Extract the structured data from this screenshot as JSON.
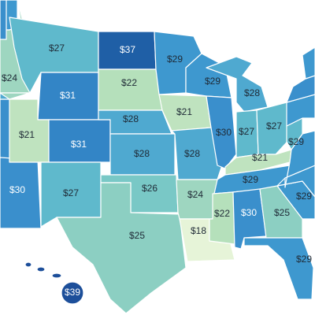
{
  "map": {
    "colors": {
      "c18": "#e6f4d8",
      "c21": "#bfe3bf",
      "c22": "#b5e0bb",
      "c24": "#9ed6c0",
      "c25": "#8ccfc2",
      "c26": "#79c8c6",
      "c27": "#5fb9cc",
      "c28": "#4fa9d0",
      "c29": "#3e98cf",
      "c30": "#3a8fcc",
      "c31": "#3385c6",
      "c37": "#1f5fa6",
      "c39": "#1d4f9a",
      "ocean": "#ffffff"
    },
    "states": [
      {
        "id": "WA",
        "value_label": "",
        "color": "c29"
      },
      {
        "id": "OR",
        "value_label": "$24",
        "color": "c24"
      },
      {
        "id": "CA",
        "value_label": "",
        "color": "c30"
      },
      {
        "id": "NV",
        "value_label": "",
        "color": "c28"
      },
      {
        "id": "ID",
        "value_label": "",
        "color": "c24"
      },
      {
        "id": "MT",
        "value_label": "$27",
        "color": "c27"
      },
      {
        "id": "WY",
        "value_label": "$31",
        "color": "c31"
      },
      {
        "id": "UT",
        "value_label": "$21",
        "color": "c21"
      },
      {
        "id": "AZ",
        "value_label": "$30",
        "color": "c30"
      },
      {
        "id": "CO",
        "value_label": "$31",
        "color": "c31"
      },
      {
        "id": "NM",
        "value_label": "$27",
        "color": "c27"
      },
      {
        "id": "ND",
        "value_label": "$37",
        "color": "c37"
      },
      {
        "id": "SD",
        "value_label": "$22",
        "color": "c22"
      },
      {
        "id": "NE",
        "value_label": "$28",
        "color": "c28"
      },
      {
        "id": "KS",
        "value_label": "$28",
        "color": "c28"
      },
      {
        "id": "OK",
        "value_label": "$26",
        "color": "c26"
      },
      {
        "id": "TX",
        "value_label": "$25",
        "color": "c25"
      },
      {
        "id": "MN",
        "value_label": "$29",
        "color": "c29"
      },
      {
        "id": "IA",
        "value_label": "$21",
        "color": "c21"
      },
      {
        "id": "MO",
        "value_label": "$28",
        "color": "c28"
      },
      {
        "id": "AR",
        "value_label": "$24",
        "color": "c24"
      },
      {
        "id": "LA",
        "value_label": "$18",
        "color": "c18"
      },
      {
        "id": "WI",
        "value_label": "$29",
        "color": "c29"
      },
      {
        "id": "IL",
        "value_label": "$30",
        "color": "c30"
      },
      {
        "id": "MI",
        "value_label": "$28",
        "color": "c28"
      },
      {
        "id": "IN",
        "value_label": "$27",
        "color": "c27"
      },
      {
        "id": "OH",
        "value_label": "$27",
        "color": "c27"
      },
      {
        "id": "KY",
        "value_label": "$21",
        "color": "c21"
      },
      {
        "id": "TN",
        "value_label": "$29",
        "color": "c29"
      },
      {
        "id": "MS",
        "value_label": "$22",
        "color": "c22"
      },
      {
        "id": "AL",
        "value_label": "$30",
        "color": "c30"
      },
      {
        "id": "GA",
        "value_label": "$25",
        "color": "c25"
      },
      {
        "id": "FL",
        "value_label": "$29",
        "color": "c29"
      },
      {
        "id": "SC",
        "value_label": "$29",
        "color": "c29"
      },
      {
        "id": "NC",
        "value_label": "",
        "color": "c29"
      },
      {
        "id": "VA",
        "value_label": "$29",
        "color": "c29"
      },
      {
        "id": "WV",
        "value_label": "",
        "color": "c27"
      },
      {
        "id": "PA",
        "value_label": "",
        "color": "c29"
      },
      {
        "id": "NY",
        "value_label": "",
        "color": "c30"
      },
      {
        "id": "NE_states",
        "value_label": "",
        "color": "c29"
      },
      {
        "id": "AK",
        "value_label": "",
        "color": "c30"
      },
      {
        "id": "HI",
        "value_label": "$39",
        "color": "c39"
      }
    ]
  }
}
